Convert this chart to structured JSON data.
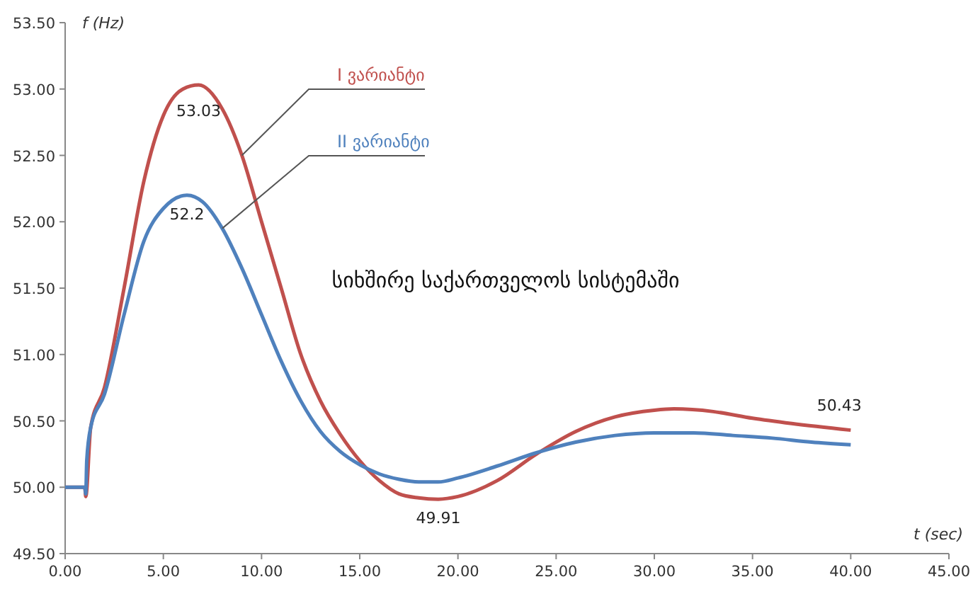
{
  "chart_data": {
    "type": "line",
    "title": "სიხშირე საქართველოს სისტემაში",
    "xlabel": "t (sec)",
    "ylabel": "f (Hz)",
    "xlim": [
      0,
      45
    ],
    "xticks": [
      {
        "value": 0,
        "label": "0.00"
      },
      {
        "value": 5,
        "label": "5.00"
      },
      {
        "value": 10,
        "label": "10.00"
      },
      {
        "value": 15,
        "label": "15.00"
      },
      {
        "value": 20,
        "label": "20.00"
      },
      {
        "value": 25,
        "label": "25.00"
      },
      {
        "value": 30,
        "label": "30.00"
      },
      {
        "value": 35,
        "label": "35.00"
      },
      {
        "value": 40,
        "label": "40.00"
      },
      {
        "value": 45,
        "label": "45.00"
      }
    ],
    "ylim": [
      49.5,
      53.5
    ],
    "yticks": [
      {
        "value": 49.5,
        "label": "49.50"
      },
      {
        "value": 50,
        "label": "50.00"
      },
      {
        "value": 50.5,
        "label": "50.50"
      },
      {
        "value": 51,
        "label": "51.00"
      },
      {
        "value": 51.5,
        "label": "51.50"
      },
      {
        "value": 52,
        "label": "52.00"
      },
      {
        "value": 52.5,
        "label": "52.50"
      },
      {
        "value": 53,
        "label": "53.00"
      },
      {
        "value": 53.5,
        "label": "53.50"
      }
    ],
    "grid": false,
    "legend": false,
    "marker": "none",
    "line_style": "solid",
    "series": [
      {
        "name": "I ვარიანტი",
        "color": "#c0504d",
        "x": [
          0,
          1,
          1.05,
          1.3,
          2,
          3,
          4,
          5,
          6,
          6.8,
          8,
          9,
          10,
          11,
          12,
          13,
          14,
          15,
          16,
          17,
          18,
          19,
          20,
          22,
          24,
          26,
          28,
          30,
          31,
          33,
          35,
          37,
          40
        ],
        "values": [
          50,
          50,
          49.93,
          50.45,
          50.75,
          51.5,
          52.3,
          52.8,
          53.0,
          53.03,
          52.85,
          52.5,
          52.0,
          51.5,
          51.0,
          50.65,
          50.4,
          50.2,
          50.05,
          49.95,
          49.92,
          49.91,
          49.93,
          50.05,
          50.25,
          50.42,
          50.53,
          50.58,
          50.59,
          50.57,
          50.52,
          50.48,
          50.43
        ]
      },
      {
        "name": "II ვარიანტი",
        "color": "#4f81bd",
        "x": [
          0,
          1,
          1.05,
          1.1,
          1.3,
          2,
          3,
          4,
          5,
          6.2,
          7,
          8,
          9,
          10,
          11,
          12,
          13,
          14,
          15,
          16,
          17,
          18,
          19,
          20,
          22,
          24,
          26,
          28,
          30,
          32,
          34,
          36,
          38,
          40
        ],
        "values": [
          50,
          50,
          49.95,
          50.2,
          50.45,
          50.7,
          51.3,
          51.85,
          52.1,
          52.2,
          52.15,
          51.95,
          51.65,
          51.3,
          50.95,
          50.65,
          50.42,
          50.27,
          50.17,
          50.1,
          50.06,
          50.04,
          50.04,
          50.07,
          50.16,
          50.26,
          50.34,
          50.39,
          50.41,
          50.41,
          50.39,
          50.37,
          50.34,
          50.32
        ]
      }
    ],
    "annotations": [
      {
        "text": "53.03",
        "x": 6.8,
        "y": 53.03
      },
      {
        "text": "52.2",
        "x": 6.2,
        "y": 52.2
      },
      {
        "text": "49.91",
        "x": 19,
        "y": 49.91
      },
      {
        "text": "50.43",
        "x": 40,
        "y": 50.43
      }
    ]
  }
}
